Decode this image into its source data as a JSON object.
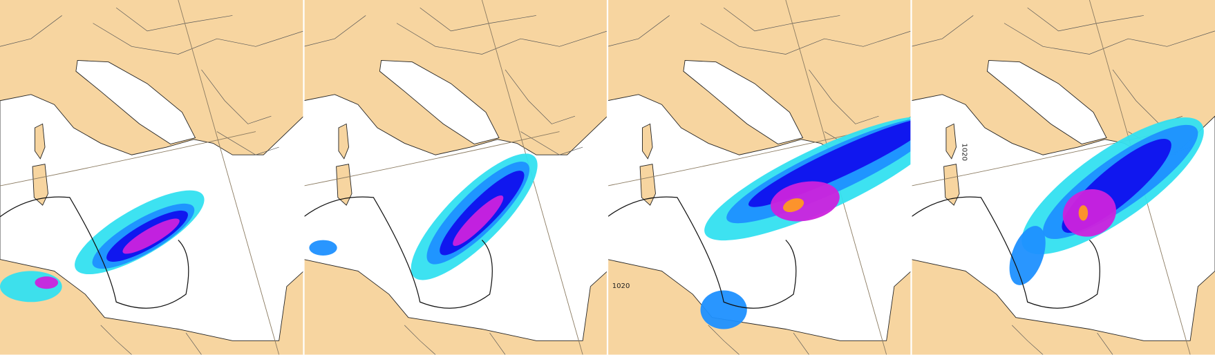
{
  "panel_3": {
    "isobar_label": "1020"
  },
  "panel_4": {
    "isobar_label": "1020"
  }
}
